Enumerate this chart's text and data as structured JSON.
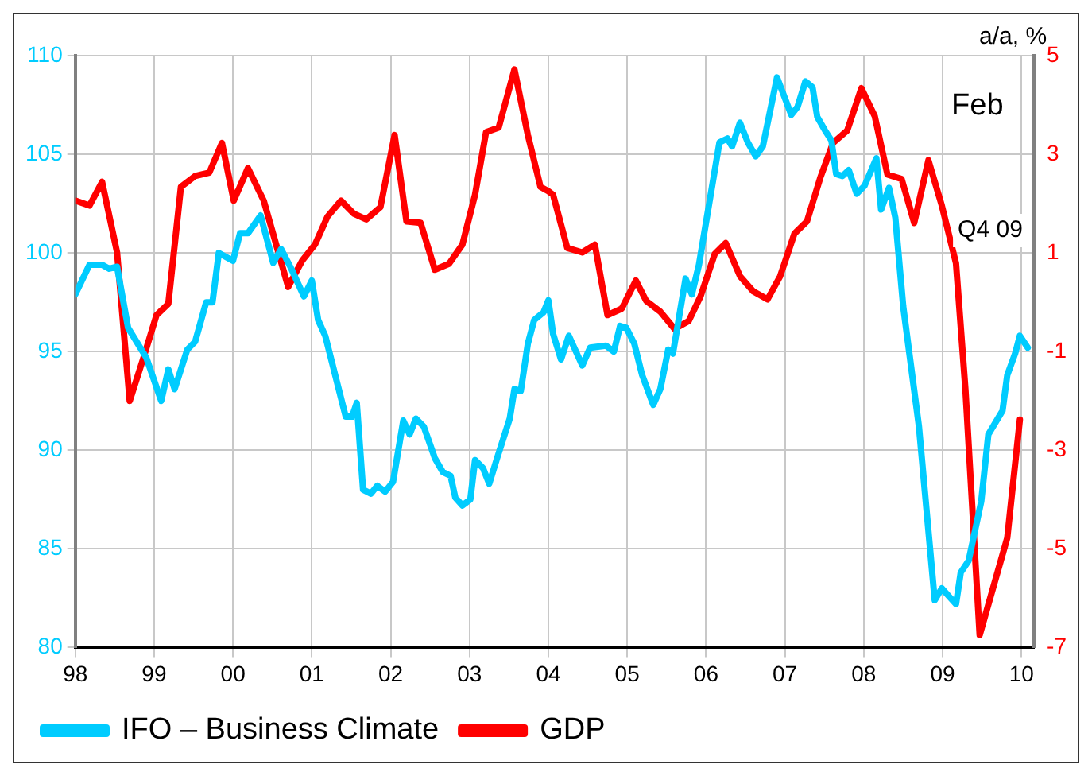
{
  "chart_data": {
    "type": "line",
    "y2label": "a/a, %",
    "annotations": [
      "Feb",
      "Q4 09"
    ],
    "xlim": [
      1998,
      2010.16
    ],
    "xticks": [
      {
        "value": 1998,
        "label": "98"
      },
      {
        "value": 1999,
        "label": "99"
      },
      {
        "value": 2000,
        "label": "00"
      },
      {
        "value": 2001,
        "label": "01"
      },
      {
        "value": 2002,
        "label": "02"
      },
      {
        "value": 2003,
        "label": "03"
      },
      {
        "value": 2004,
        "label": "04"
      },
      {
        "value": 2005,
        "label": "05"
      },
      {
        "value": 2006,
        "label": "06"
      },
      {
        "value": 2007,
        "label": "07"
      },
      {
        "value": 2008,
        "label": "08"
      },
      {
        "value": 2009,
        "label": "09"
      },
      {
        "value": 2010,
        "label": "10"
      }
    ],
    "ylim": [
      80,
      110
    ],
    "yticks": [
      80,
      85,
      90,
      95,
      100,
      105,
      110
    ],
    "y2lim": [
      -7,
      5
    ],
    "y2ticks": [
      -7,
      -5,
      -3,
      -1,
      1,
      3,
      5
    ],
    "grid": true,
    "legend": "bottom",
    "marker": "none",
    "line_style": "solid",
    "series": [
      {
        "name": "IFO – Business Climate",
        "color": "#00ccff",
        "x": [
          1998.0,
          1998.18,
          1998.34,
          1998.43,
          1998.53,
          1998.67,
          1998.9,
          1999.09,
          1999.18,
          1999.26,
          1999.42,
          1999.52,
          1999.66,
          1999.74,
          1999.82,
          2000.0,
          2000.09,
          2000.19,
          2000.35,
          2000.51,
          2000.61,
          2000.74,
          2000.9,
          2001.0,
          2001.08,
          2001.17,
          2001.43,
          2001.51,
          2001.57,
          2001.65,
          2001.75,
          2001.83,
          2001.93,
          2002.03,
          2002.16,
          2002.24,
          2002.32,
          2002.42,
          2002.56,
          2002.66,
          2002.76,
          2002.82,
          2002.91,
          2003.01,
          2003.07,
          2003.17,
          2003.25,
          2003.35,
          2003.51,
          2003.57,
          2003.65,
          2003.74,
          2003.82,
          2003.94,
          2004.0,
          2004.06,
          2004.16,
          2004.26,
          2004.43,
          2004.53,
          2004.73,
          2004.83,
          2004.91,
          2004.99,
          2005.09,
          2005.19,
          2005.33,
          2005.42,
          2005.52,
          2005.58,
          2005.74,
          2005.82,
          2005.91,
          2006.01,
          2006.17,
          2006.27,
          2006.33,
          2006.43,
          2006.53,
          2006.63,
          2006.72,
          2006.9,
          2007.08,
          2007.16,
          2007.26,
          2007.35,
          2007.41,
          2007.51,
          2007.59,
          2007.65,
          2007.73,
          2007.81,
          2007.91,
          2008.01,
          2008.16,
          2008.22,
          2008.32,
          2008.4,
          2008.5,
          2008.7,
          2008.9,
          2008.99,
          2009.17,
          2009.23,
          2009.33,
          2009.49,
          2009.58,
          2009.76,
          2009.82,
          2009.92,
          2009.98,
          2010.08
        ],
        "values": [
          97.9,
          99.4,
          99.4,
          99.2,
          99.3,
          96.2,
          94.7,
          92.5,
          94.1,
          93.1,
          95.1,
          95.5,
          97.5,
          97.5,
          100.0,
          99.6,
          101.0,
          101.0,
          101.9,
          99.5,
          100.2,
          99.2,
          97.8,
          98.6,
          96.6,
          95.8,
          91.7,
          91.7,
          92.4,
          88.0,
          87.8,
          88.2,
          87.9,
          88.4,
          91.5,
          90.8,
          91.6,
          91.2,
          89.6,
          88.9,
          88.7,
          87.6,
          87.2,
          87.5,
          89.5,
          89.1,
          88.3,
          89.6,
          91.6,
          93.1,
          93.0,
          95.4,
          96.6,
          97.0,
          97.6,
          95.9,
          94.6,
          95.8,
          94.3,
          95.2,
          95.3,
          95.0,
          96.3,
          96.2,
          95.4,
          93.8,
          92.3,
          93.1,
          95.1,
          94.9,
          98.7,
          97.9,
          99.4,
          101.8,
          105.6,
          105.8,
          105.4,
          106.6,
          105.6,
          104.9,
          105.4,
          108.9,
          107.0,
          107.4,
          108.7,
          108.4,
          106.9,
          106.2,
          105.7,
          104.0,
          103.9,
          104.2,
          103.0,
          103.4,
          104.8,
          102.2,
          103.3,
          101.8,
          97.3,
          91.2,
          82.4,
          83.0,
          82.2,
          83.8,
          84.4,
          87.4,
          90.8,
          92.0,
          93.8,
          94.9,
          95.8,
          95.2
        ]
      },
      {
        "name": "GDP",
        "color": "#ff0000",
        "axis": "y2",
        "x": [
          1998.0,
          1998.18,
          1998.34,
          1998.53,
          1998.69,
          1998.87,
          1999.03,
          1999.18,
          1999.34,
          1999.52,
          1999.7,
          1999.86,
          2000.01,
          2000.19,
          2000.39,
          2000.7,
          2000.88,
          2001.04,
          2001.2,
          2001.37,
          2001.53,
          2001.69,
          2001.87,
          2002.05,
          2002.2,
          2002.38,
          2002.56,
          2002.74,
          2002.91,
          2003.07,
          2003.21,
          2003.37,
          2003.57,
          2003.74,
          2003.9,
          2004.0,
          2004.06,
          2004.24,
          2004.43,
          2004.59,
          2004.75,
          2004.93,
          2005.11,
          2005.24,
          2005.42,
          2005.6,
          2005.78,
          2005.93,
          2006.11,
          2006.25,
          2006.43,
          2006.6,
          2006.78,
          2006.94,
          2007.12,
          2007.28,
          2007.45,
          2007.61,
          2007.79,
          2007.97,
          2008.14,
          2008.3,
          2008.48,
          2008.64,
          2008.82,
          2008.99,
          2009.17,
          2009.29,
          2009.47,
          2009.82,
          2009.98
        ],
        "values": [
          2.06,
          1.96,
          2.44,
          1.01,
          -2.0,
          -1.1,
          -0.26,
          -0.03,
          2.34,
          2.56,
          2.63,
          3.23,
          2.06,
          2.72,
          2.06,
          0.31,
          0.85,
          1.17,
          1.74,
          2.06,
          1.8,
          1.68,
          1.93,
          3.39,
          1.64,
          1.61,
          0.66,
          0.78,
          1.17,
          2.18,
          3.45,
          3.54,
          4.72,
          3.39,
          2.34,
          2.25,
          2.18,
          1.1,
          1.01,
          1.17,
          -0.26,
          -0.13,
          0.44,
          0.03,
          -0.19,
          -0.54,
          -0.38,
          0.12,
          0.98,
          1.2,
          0.53,
          0.22,
          0.06,
          0.53,
          1.39,
          1.64,
          2.53,
          3.23,
          3.48,
          4.34,
          3.77,
          2.59,
          2.5,
          1.61,
          2.88,
          1.96,
          0.79,
          -1.78,
          -6.75,
          -4.78,
          -2.38
        ]
      }
    ]
  }
}
